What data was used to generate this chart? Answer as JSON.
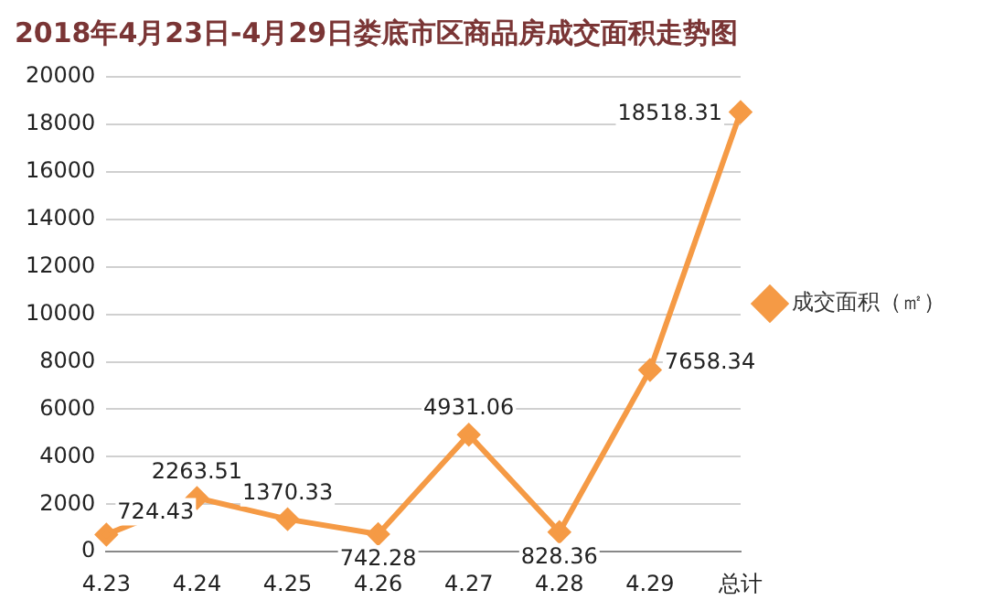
{
  "chart_data": {
    "type": "line",
    "title": "2018年4月23日-4月29日娄底市区商品房成交面积走势图",
    "categories": [
      "4.23",
      "4.24",
      "4.25",
      "4.26",
      "4.27",
      "4.28",
      "4.29",
      "总计"
    ],
    "series": [
      {
        "name": "成交面积（㎡）",
        "color": "#f59a45",
        "values": [
          724.43,
          2263.51,
          1370.33,
          742.28,
          4931.06,
          828.36,
          7658.34,
          18518.31
        ]
      }
    ],
    "ylim": [
      0,
      20000
    ],
    "yticks": [
      0,
      2000,
      4000,
      6000,
      8000,
      10000,
      12000,
      14000,
      16000,
      18000,
      20000
    ],
    "grid": "y",
    "legend": "right",
    "marker": "diamond",
    "line_style": "solid",
    "data_labels": true
  }
}
